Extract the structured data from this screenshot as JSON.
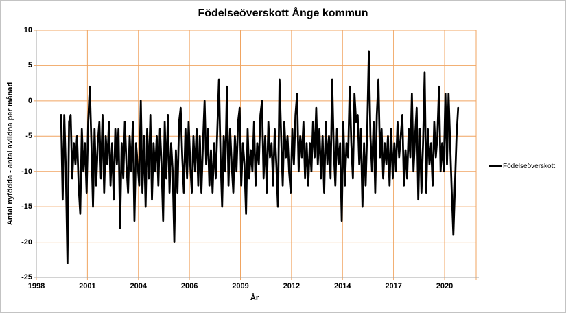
{
  "window": {
    "background": "#ffffff",
    "border_color": "#c3c3c3"
  },
  "chart_data": {
    "type": "line",
    "title": "Födelseöverskott Ånge kommun",
    "xlabel": "År",
    "ylabel": "Antal nyfödda - antal avlidna per månad",
    "ylim": [
      -25,
      10
    ],
    "yticks": [
      10,
      5,
      0,
      -5,
      -10,
      -15,
      -20,
      -25
    ],
    "xtick_labels": [
      "1998",
      "2001",
      "2004",
      "2006",
      "2009",
      "2012",
      "2014",
      "2017",
      "2020"
    ],
    "x_axis": {
      "kind": "category-monthly",
      "axis_start_month": "1998-10",
      "months_per_tick": 32
    },
    "grid": true,
    "legend": {
      "position": "right",
      "entries": [
        {
          "label": "Födelseöverskott",
          "color": "#000000"
        }
      ]
    },
    "colors": {
      "gridline": "#F0A461",
      "axis": "#A6A6A6",
      "line": "#000000",
      "text": "#000000"
    },
    "series": [
      {
        "name": "Födelseöverskott",
        "frequency": "monthly",
        "start_month": "2000-01",
        "end_month": "2020-10",
        "values": [
          -2,
          -14,
          -2,
          -10,
          -23,
          -3,
          -2,
          -11,
          -6,
          -9,
          -5,
          -12,
          -16,
          -4,
          -10,
          -6,
          -13,
          -3,
          2,
          -6,
          -15,
          -4,
          -12,
          -6,
          -3,
          -11,
          -2,
          -13,
          -5,
          -9,
          -3,
          -12,
          -6,
          -14,
          -4,
          -9,
          -4,
          -18,
          -6,
          -11,
          -3,
          -9,
          -13,
          -5,
          -10,
          -3,
          -17,
          -6,
          -9,
          -12,
          0,
          -13,
          -5,
          -15,
          -4,
          -11,
          -2,
          -14,
          -6,
          -10,
          -5,
          -12,
          -4,
          -9,
          -17,
          -3,
          -11,
          -2,
          -13,
          -6,
          -10,
          -20,
          -7,
          -13,
          -3,
          -1,
          -8,
          -13,
          -4,
          -11,
          -3,
          -9,
          -13,
          -5,
          -10,
          -4,
          -12,
          -5,
          -13,
          -6,
          0,
          -9,
          -4,
          -12,
          -7,
          -13,
          -6,
          -11,
          -4,
          3,
          -8,
          -15,
          -5,
          -10,
          2,
          -12,
          -4,
          -9,
          -13,
          -5,
          -10,
          -3,
          -1,
          -12,
          -6,
          -9,
          -16,
          -4,
          -11,
          -7,
          -10,
          -3,
          -12,
          -6,
          -9,
          -2,
          0,
          -11,
          -5,
          -13,
          -3,
          -8,
          -6,
          -12,
          -4,
          -9,
          -15,
          3,
          -5,
          -12,
          -3,
          -8,
          -5,
          -10,
          -13,
          -4,
          -9,
          -2,
          1,
          -10,
          -5,
          -8,
          -3,
          -11,
          -6,
          -12,
          -6,
          -10,
          -3,
          -8,
          -1,
          -9,
          -4,
          -11,
          -5,
          -13,
          -3,
          -9,
          -5,
          -11,
          3,
          -7,
          -12,
          -4,
          -9,
          -6,
          -17,
          -3,
          -12,
          -6,
          -8,
          2,
          -6,
          -11,
          1,
          -3,
          -2,
          -9,
          -4,
          -15,
          -6,
          -12,
          -4,
          7,
          -5,
          -10,
          -3,
          -13,
          -2,
          3,
          -8,
          -4,
          -11,
          -6,
          -9,
          -5,
          -12,
          -4,
          -11,
          -6,
          -10,
          -3,
          -8,
          -5,
          -2,
          -12,
          -7,
          -11,
          -4,
          -8,
          1,
          -10,
          -5,
          -1,
          -14,
          -4,
          -13,
          -6,
          4,
          -13,
          -4,
          -9,
          -6,
          -12,
          -3,
          -8,
          -5,
          2,
          -10,
          -6,
          -10,
          1,
          -9,
          1,
          -6,
          -13,
          -19,
          -12,
          -5,
          -1
        ]
      }
    ]
  }
}
